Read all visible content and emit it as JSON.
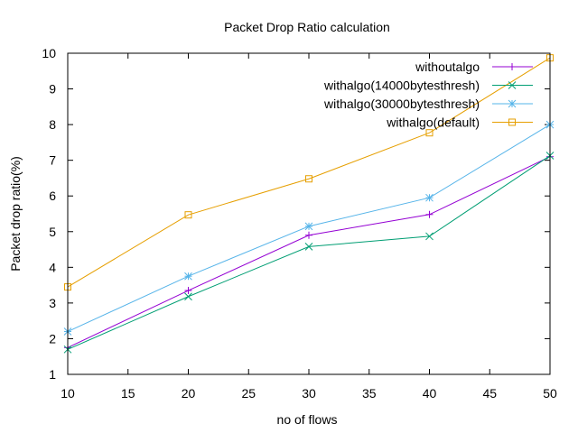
{
  "chart_data": {
    "type": "line",
    "title": "Packet Drop Ratio calculation",
    "xlabel": "no of flows",
    "ylabel": "Packet drop ratio(%)",
    "xlim": [
      10,
      50
    ],
    "ylim": [
      1,
      10
    ],
    "xticks": [
      "10",
      "15",
      "20",
      "25",
      "30",
      "35",
      "40",
      "45",
      "50"
    ],
    "yticks": [
      "1",
      "2",
      "3",
      "4",
      "5",
      "6",
      "7",
      "8",
      "9",
      "10"
    ],
    "grid": false,
    "legend_position": "top-right",
    "x": [
      10,
      20,
      30,
      40,
      50
    ],
    "series": [
      {
        "name": "withoutalgo",
        "color": "#9400d3",
        "marker": "plus",
        "values": [
          1.75,
          3.35,
          4.9,
          5.48,
          7.1
        ]
      },
      {
        "name": "withalgo(14000bytesthresh)",
        "color": "#009e73",
        "marker": "cross",
        "values": [
          1.7,
          3.18,
          4.58,
          4.87,
          7.13
        ]
      },
      {
        "name": "withalgo(30000bytesthresh)",
        "color": "#56b4e9",
        "marker": "star",
        "values": [
          2.2,
          3.75,
          5.15,
          5.95,
          8.0
        ]
      },
      {
        "name": "withalgo(default)",
        "color": "#e69f00",
        "marker": "square",
        "values": [
          3.45,
          5.47,
          6.48,
          7.77,
          9.87
        ]
      }
    ]
  }
}
